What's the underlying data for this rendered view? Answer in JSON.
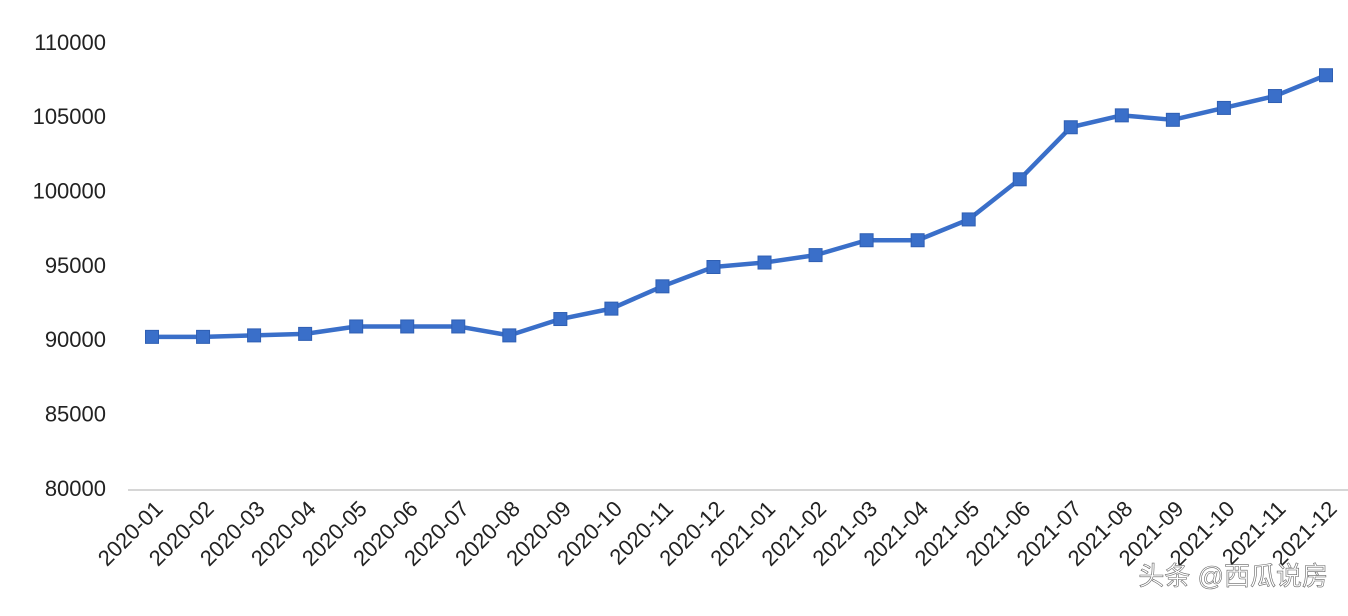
{
  "chart_data": {
    "type": "line",
    "categories": [
      "2020-01",
      "2020-02",
      "2020-03",
      "2020-04",
      "2020-05",
      "2020-06",
      "2020-07",
      "2020-08",
      "2020-09",
      "2020-10",
      "2020-11",
      "2020-12",
      "2021-01",
      "2021-02",
      "2021-03",
      "2021-04",
      "2021-05",
      "2021-06",
      "2021-07",
      "2021-08",
      "2021-09",
      "2021-10",
      "2021-11",
      "2021-12"
    ],
    "values": [
      90300,
      90300,
      90400,
      90500,
      91000,
      91000,
      91000,
      90400,
      91500,
      92200,
      93700,
      95000,
      95300,
      95800,
      96800,
      96800,
      98200,
      100900,
      104400,
      105200,
      104900,
      105700,
      106500,
      107900
    ],
    "color": "#3a6fc9",
    "ylim": [
      80000,
      110000
    ],
    "yticks": [
      80000,
      85000,
      90000,
      95000,
      100000,
      105000,
      110000
    ],
    "grid": false,
    "watermark": "头条 @西瓜说房"
  }
}
